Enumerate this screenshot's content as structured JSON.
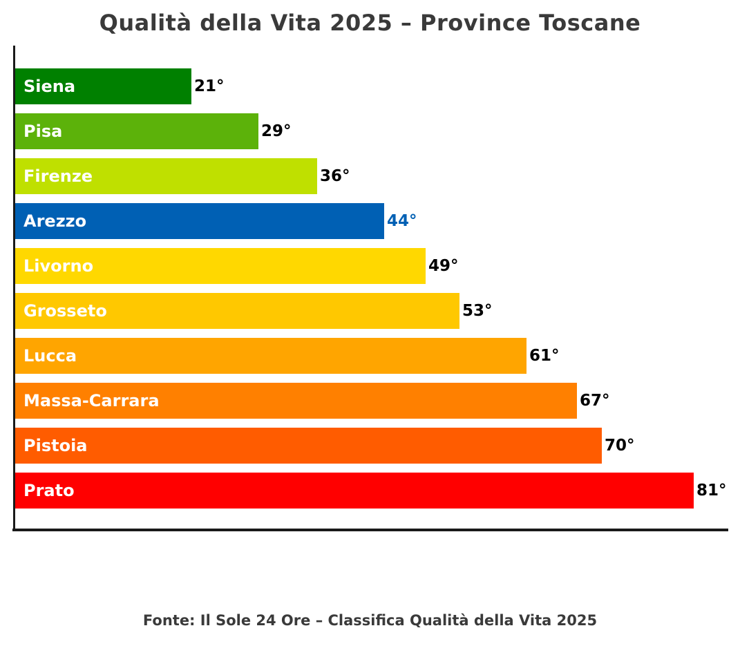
{
  "chart_data": {
    "type": "bar",
    "orientation": "horizontal",
    "title": "Qualità della Vita 2025 – Province Toscane",
    "source": "Fonte: Il Sole 24 Ore – Classifica Qualità della Vita 2025",
    "categories": [
      "Siena",
      "Pisa",
      "Firenze",
      "Arezzo",
      "Livorno",
      "Grosseto",
      "Lucca",
      "Massa-Carrara",
      "Pistoia",
      "Prato"
    ],
    "values": [
      21,
      29,
      36,
      44,
      49,
      53,
      61,
      67,
      70,
      81
    ],
    "value_labels": [
      "21°",
      "29°",
      "36°",
      "44°",
      "49°",
      "53°",
      "61°",
      "67°",
      "70°",
      "81°"
    ],
    "bar_colors": [
      "#008000",
      "#5cb20a",
      "#bfe000",
      "#0060b4",
      "#ffd800",
      "#ffc800",
      "#ffa500",
      "#ff8000",
      "#ff5c00",
      "#ff0000"
    ],
    "value_label_colors": [
      "#000000",
      "#000000",
      "#000000",
      "#0060b4",
      "#000000",
      "#000000",
      "#000000",
      "#000000",
      "#000000",
      "#000000"
    ],
    "highlighted_category": "Arezzo",
    "xlim": [
      0,
      85
    ],
    "grid": false,
    "legend": false,
    "axis_color": "#1a1a1a"
  }
}
